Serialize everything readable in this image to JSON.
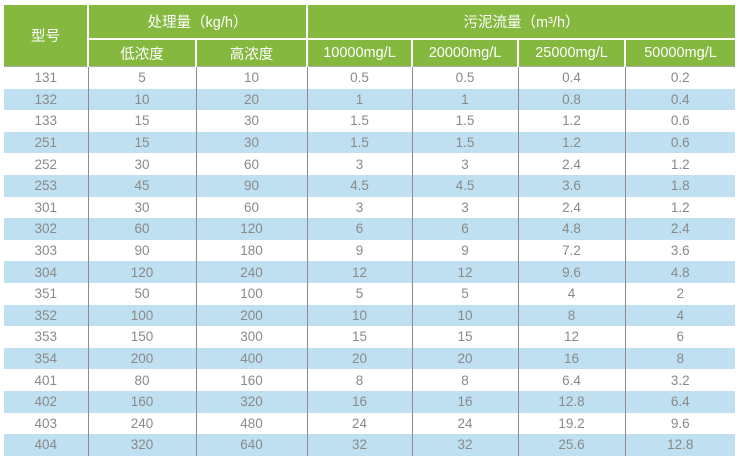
{
  "colors": {
    "header_green": "#85B83E",
    "stripe_blue": "#BEE0F0",
    "divider_gray": "#8C8C8C",
    "text_gray": "#8A8A8A",
    "header_text": "#FFFFFF"
  },
  "table": {
    "model_header": "型号",
    "groups": [
      {
        "label": "处理量（kg/h）",
        "subcols": [
          "低浓度",
          "高浓度"
        ]
      },
      {
        "label": "污泥流量（m³/h）",
        "subcols": [
          "10000mg/L",
          "20000mg/L",
          "25000mg/L",
          "50000mg/L"
        ]
      }
    ],
    "rows": [
      [
        "131",
        "5",
        "10",
        "0.5",
        "0.5",
        "0.4",
        "0.2"
      ],
      [
        "132",
        "10",
        "20",
        "1",
        "1",
        "0.8",
        "0.4"
      ],
      [
        "133",
        "15",
        "30",
        "1.5",
        "1.5",
        "1.2",
        "0.6"
      ],
      [
        "251",
        "15",
        "30",
        "1.5",
        "1.5",
        "1.2",
        "0.6"
      ],
      [
        "252",
        "30",
        "60",
        "3",
        "3",
        "2.4",
        "1.2"
      ],
      [
        "253",
        "45",
        "90",
        "4.5",
        "4.5",
        "3.6",
        "1.8"
      ],
      [
        "301",
        "30",
        "60",
        "3",
        "3",
        "2.4",
        "1.2"
      ],
      [
        "302",
        "60",
        "120",
        "6",
        "6",
        "4.8",
        "2.4"
      ],
      [
        "303",
        "90",
        "180",
        "9",
        "9",
        "7.2",
        "3.6"
      ],
      [
        "304",
        "120",
        "240",
        "12",
        "12",
        "9.6",
        "4.8"
      ],
      [
        "351",
        "50",
        "100",
        "5",
        "5",
        "4",
        "2"
      ],
      [
        "352",
        "100",
        "200",
        "10",
        "10",
        "8",
        "4"
      ],
      [
        "353",
        "150",
        "300",
        "15",
        "15",
        "12",
        "6"
      ],
      [
        "354",
        "200",
        "400",
        "20",
        "20",
        "16",
        "8"
      ],
      [
        "401",
        "80",
        "160",
        "8",
        "8",
        "6.4",
        "3.2"
      ],
      [
        "402",
        "160",
        "320",
        "16",
        "16",
        "12.8",
        "6.4"
      ],
      [
        "403",
        "240",
        "480",
        "24",
        "24",
        "19.2",
        "9.6"
      ],
      [
        "404",
        "320",
        "640",
        "32",
        "32",
        "25.6",
        "12.8"
      ]
    ]
  }
}
